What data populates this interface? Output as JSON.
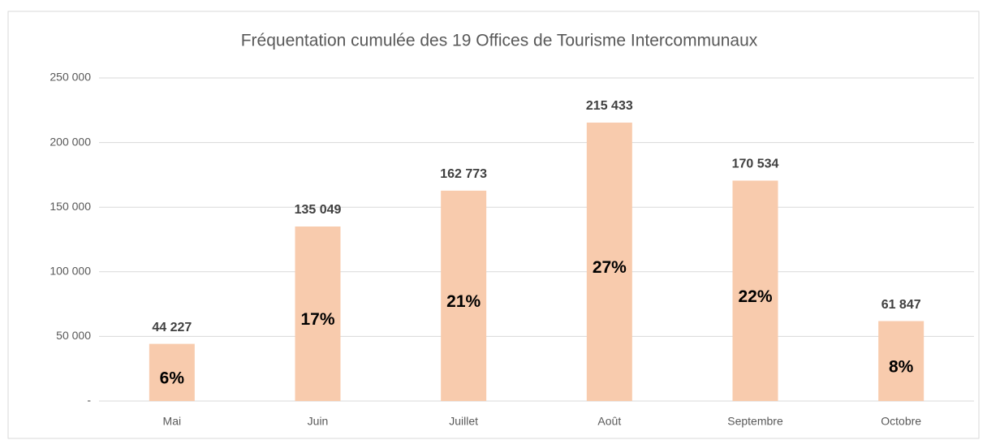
{
  "chart_data": {
    "type": "bar",
    "title": "Fréquentation cumulée des 19 Offices de Tourisme Intercommunaux",
    "categories": [
      "Mai",
      "Juin",
      "Juillet",
      "Août",
      "Septembre",
      "Octobre"
    ],
    "values": [
      44227,
      135049,
      162773,
      215433,
      170534,
      61847
    ],
    "value_labels": [
      "44 227",
      "135 049",
      "162 773",
      "215 433",
      "170 534",
      "61 847"
    ],
    "share_labels": [
      "6%",
      "17%",
      "21%",
      "27%",
      "22%",
      "8%"
    ],
    "color": "#f8cbad",
    "ylim": [
      0,
      250000
    ],
    "yticks": [
      {
        "value": 0,
        "label": "-"
      },
      {
        "value": 50000,
        "label": "50 000"
      },
      {
        "value": 100000,
        "label": "100 000"
      },
      {
        "value": 150000,
        "label": "150 000"
      },
      {
        "value": 200000,
        "label": "200 000"
      },
      {
        "value": 250000,
        "label": "250 000"
      }
    ],
    "grid": true
  }
}
